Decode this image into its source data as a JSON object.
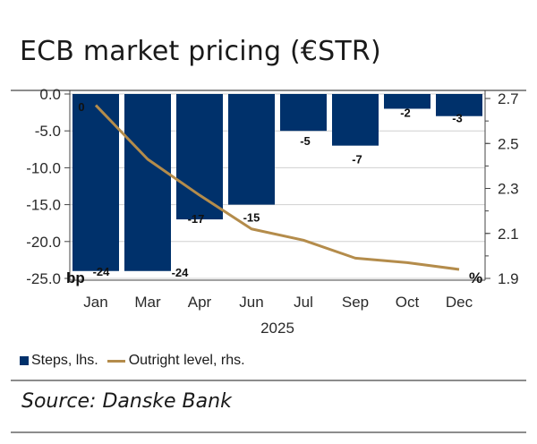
{
  "title": "ECB market pricing (€STR)",
  "source": "Source: Danske Bank",
  "colors": {
    "bar": "#00316b",
    "line": "#b48c4b",
    "grid": "#d0d0d0",
    "axis": "#444444"
  },
  "legend": {
    "bars": "Steps, lhs.",
    "line": "Outright level, rhs."
  },
  "chart_data": {
    "type": "bar+line",
    "categories": [
      "Jan",
      "Mar",
      "Apr",
      "Jun",
      "Jul",
      "Sep",
      "Oct",
      "Dec"
    ],
    "xlabel": "2025",
    "series": [
      {
        "name": "Steps, lhs.",
        "axis": "left",
        "type": "bar",
        "values": [
          -24,
          -24,
          -17,
          -15,
          -5,
          -7,
          -2,
          -3
        ],
        "labels": [
          "-24",
          "-24",
          "-17",
          "-15",
          "-5",
          "-7",
          "-2",
          "-3"
        ]
      },
      {
        "name": "Outright level, rhs.",
        "axis": "right",
        "type": "line",
        "values": [
          2.67,
          2.43,
          2.27,
          2.12,
          2.07,
          1.99,
          1.97,
          1.94
        ]
      }
    ],
    "first_label": "0",
    "ylim_left": [
      -25,
      0
    ],
    "yticks_left": [
      "0.0",
      "-5.0",
      "-10.0",
      "-15.0",
      "-20.0",
      "-25.0"
    ],
    "ylim_right": [
      1.9,
      2.72
    ],
    "yticks_right": [
      "2.7",
      "2.5",
      "2.3",
      "2.1",
      "1.9"
    ],
    "unit_left": "bp",
    "unit_right": "%",
    "grid": true
  }
}
